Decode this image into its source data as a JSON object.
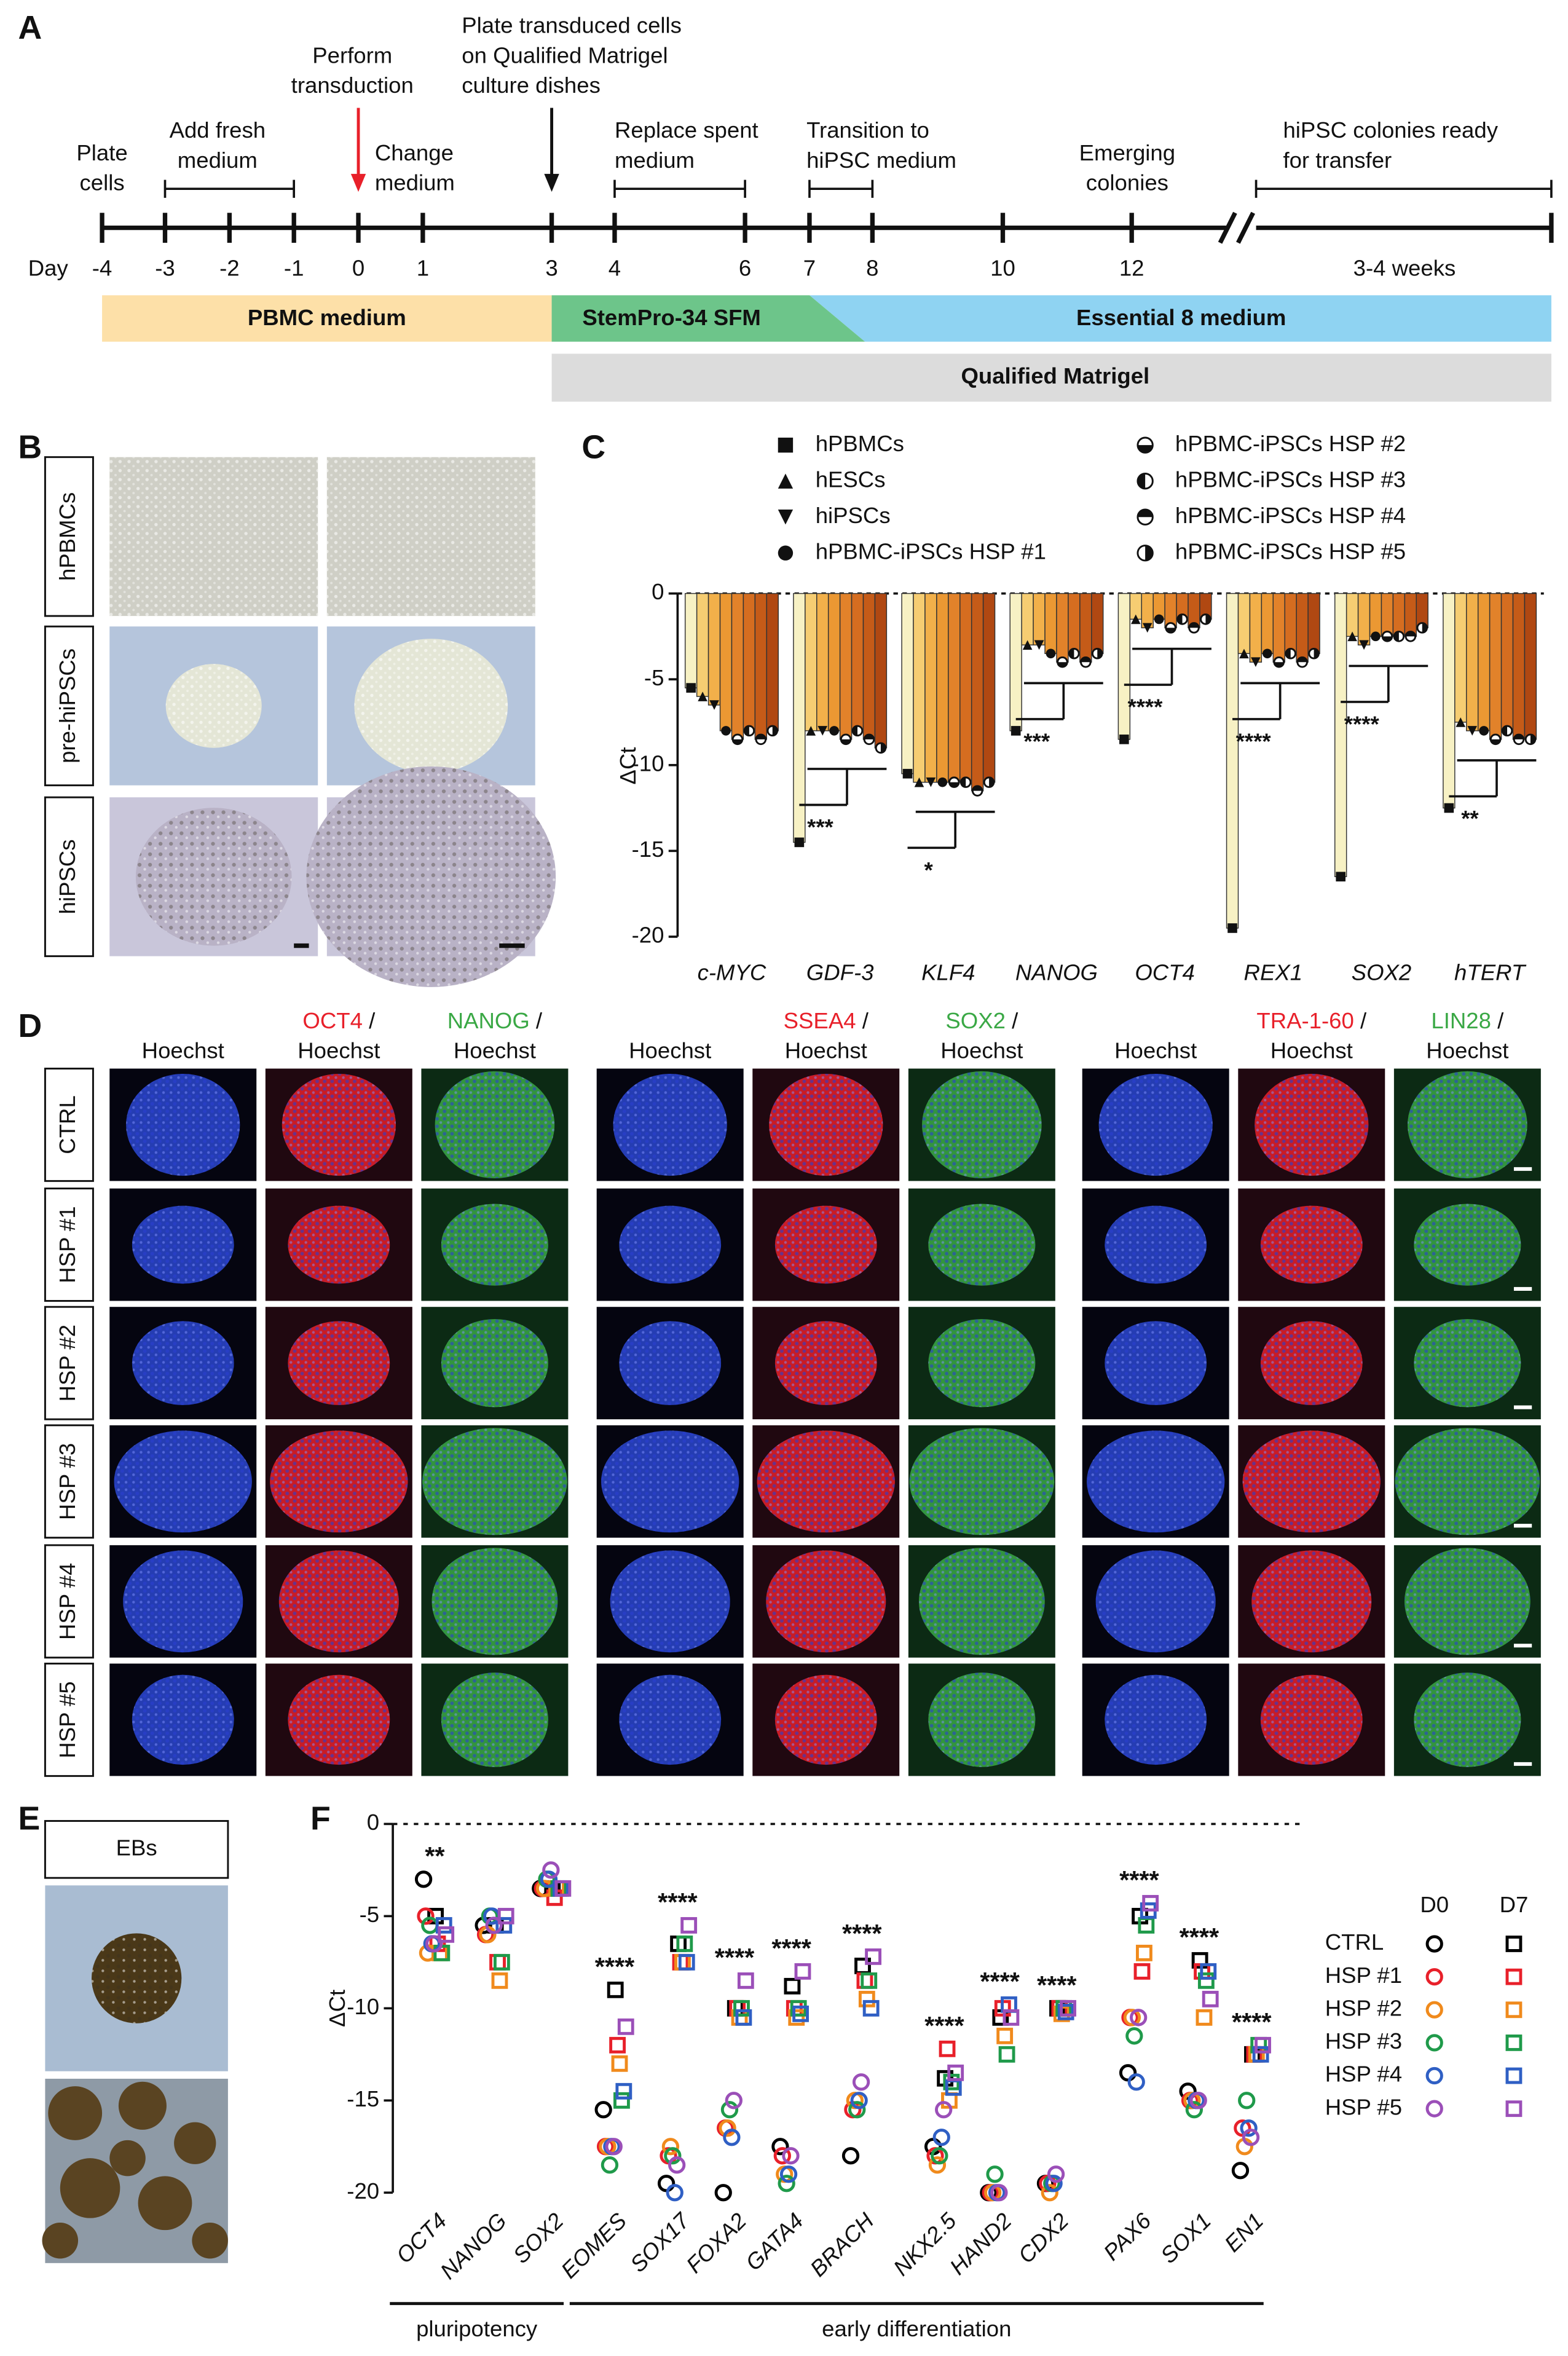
{
  "panel_labels": [
    "A",
    "B",
    "C",
    "D",
    "E",
    "F"
  ],
  "timeline": {
    "day_label": "Day",
    "days": [
      -4,
      -3,
      -2,
      -1,
      0,
      1,
      3,
      4,
      6,
      7,
      8,
      10,
      12
    ],
    "final_label": "3-4 weeks",
    "events": [
      {
        "lines": [
          "Plate",
          "cells"
        ]
      },
      {
        "lines": [
          "Add fresh",
          "medium"
        ]
      },
      {
        "lines": [
          "Perform",
          "transduction"
        ]
      },
      {
        "lines": [
          "Change",
          "medium"
        ]
      },
      {
        "lines": [
          "Plate transduced cells",
          "on Qualified Matrigel",
          "culture dishes"
        ]
      },
      {
        "lines": [
          "Replace spent",
          "medium"
        ]
      },
      {
        "lines": [
          "Transition to",
          "hiPSC medium"
        ]
      },
      {
        "lines": [
          "Emerging",
          "colonies"
        ]
      },
      {
        "lines": [
          "hiPSC colonies ready",
          "for transfer"
        ]
      }
    ],
    "media": [
      "PBMC medium",
      "StemPro-34 SFM",
      "Essential 8 medium"
    ],
    "coating": "Qualified Matrigel"
  },
  "panel_b": {
    "rows": [
      "hPBMCs",
      "pre-hiPSCs",
      "hiPSCs"
    ]
  },
  "chart_data": [
    {
      "type": "bar",
      "y_label": "ΔCt",
      "categories": [
        "c-MYC",
        "GDF-3",
        "KLF4",
        "NANOG",
        "OCT4",
        "REX1",
        "SOX2",
        "hTERT"
      ],
      "ylim": [
        -20,
        0
      ],
      "yticks": [
        -20,
        -15,
        -10,
        -5,
        0
      ],
      "series": [
        {
          "name": "hPBMCs",
          "color": "#f7f1c4",
          "marker": "square",
          "values": [
            -5.5,
            -14.5,
            -10.5,
            -8,
            -8.5,
            -19.5,
            -16.5,
            -12.5
          ]
        },
        {
          "name": "hESCs",
          "color": "#f6cd72",
          "marker": "triangle",
          "values": [
            -6,
            -8,
            -11,
            -3,
            -1.5,
            -3.5,
            -2.5,
            -7.5
          ]
        },
        {
          "name": "hiPSCs",
          "color": "#f2b04a",
          "marker": "triangle-down",
          "values": [
            -6.5,
            -8,
            -11,
            -3,
            -2,
            -4,
            -3,
            -8
          ]
        },
        {
          "name": "hPBMC-iPSCs HSP #1",
          "color": "#eb9833",
          "marker": "circle",
          "values": [
            -8,
            -8,
            -11,
            -3.5,
            -1.5,
            -3.5,
            -2.5,
            -8
          ]
        },
        {
          "name": "hPBMC-iPSCs HSP #2",
          "color": "#e2822a",
          "marker": "half-bottom",
          "values": [
            -8.5,
            -8.5,
            -11,
            -4,
            -2,
            -4,
            -2.5,
            -8.5
          ]
        },
        {
          "name": "hPBMC-iPSCs HSP #3",
          "color": "#d56d20",
          "marker": "half-left",
          "values": [
            -8,
            -8,
            -11,
            -3.5,
            -1.5,
            -3.5,
            -2.5,
            -8
          ]
        },
        {
          "name": "hPBMC-iPSCs HSP #4",
          "color": "#c55b18",
          "marker": "half-top",
          "values": [
            -8.5,
            -8.5,
            -11.5,
            -4,
            -2,
            -4,
            -2.5,
            -8.5
          ]
        },
        {
          "name": "hPBMC-iPSCs HSP #5",
          "color": "#b04812",
          "marker": "half-right",
          "values": [
            -8,
            -9,
            -11,
            -3.5,
            -1.5,
            -3.5,
            -2,
            -8.5
          ]
        }
      ],
      "significance": [
        null,
        "***",
        "*",
        "***",
        "****",
        "****",
        "****",
        "**"
      ]
    },
    {
      "type": "scatter",
      "y_label": "ΔCt",
      "categories": [
        "OCT4",
        "NANOG",
        "SOX2",
        "EOMES",
        "SOX17",
        "FOXA2",
        "GATA4",
        "BRACH",
        "NKX2.5",
        "HAND2",
        "CDX2",
        "PAX6",
        "SOX1",
        "EN1"
      ],
      "ylim": [
        -20,
        0
      ],
      "yticks": [
        -20,
        -15,
        -10,
        -5,
        0
      ],
      "timepoints": [
        "D0",
        "D7"
      ],
      "markers": [
        "circle",
        "square"
      ],
      "series": [
        {
          "name": "CTRL",
          "color": "#000000",
          "values": [
            [
              -3,
              -5.5,
              -3.5,
              -15.5,
              -19.5,
              -20,
              -17.5,
              -18,
              -17.5,
              -20,
              -19.5,
              -13.5,
              -14.5,
              -18.8
            ],
            [
              -5,
              -5.5,
              -3.5,
              -9,
              -6.5,
              -10,
              -8.8,
              -7.7,
              -13.8,
              -10.5,
              -10,
              -5,
              -7.4,
              -12.5
            ]
          ]
        },
        {
          "name": "HSP #1",
          "color": "#e8202a",
          "values": [
            [
              -5,
              -6,
              -3.5,
              -17.5,
              -18,
              -16.5,
              -18,
              -15.5,
              -18,
              -20,
              -19.5,
              -10.5,
              -15,
              -16.5
            ],
            [
              -6.5,
              -7.5,
              -4,
              -12,
              -7.5,
              -10,
              -10,
              -8.5,
              -12.2,
              -10,
              -10,
              -8,
              -8,
              -12.5
            ]
          ]
        },
        {
          "name": "HSP #2",
          "color": "#f08a1c",
          "values": [
            [
              -7,
              -6,
              -3.5,
              -17.5,
              -17.5,
              -16.5,
              -19,
              -15,
              -18.5,
              -20,
              -20,
              -10.5,
              -15,
              -17.5
            ],
            [
              -7,
              -8.5,
              -3.5,
              -13,
              -7.5,
              -10.5,
              -10.5,
              -9.5,
              -15,
              -11.5,
              -10.3,
              -7,
              -10.5,
              -12.5
            ]
          ]
        },
        {
          "name": "HSP #3",
          "color": "#1f9a4a",
          "values": [
            [
              -5.5,
              -5,
              -3,
              -18.5,
              -18,
              -15.5,
              -19.5,
              -15.5,
              -18,
              -19,
              -19.5,
              -11.5,
              -15.5,
              -15
            ],
            [
              -7,
              -7.5,
              -3.5,
              -15,
              -6.5,
              -10,
              -10,
              -8.5,
              -14,
              -12.5,
              -10,
              -5.5,
              -8.5,
              -12
            ]
          ]
        },
        {
          "name": "HSP #4",
          "color": "#2f5fc4",
          "values": [
            [
              -6.5,
              -5,
              -3,
              -17.5,
              -20,
              -17,
              -19,
              -15,
              -17,
              -20,
              -19.5,
              -14,
              -15,
              -16.5
            ],
            [
              -5.5,
              -5.5,
              -3.5,
              -14.5,
              -7.5,
              -10.5,
              -10.3,
              -10,
              -14.3,
              -9.8,
              -10.2,
              -4.7,
              -8,
              -12.5
            ]
          ]
        },
        {
          "name": "HSP #5",
          "color": "#9b4fb8",
          "values": [
            [
              -6.5,
              -5.5,
              -2.5,
              -17.5,
              -18.5,
              -15,
              -18,
              -14,
              -15.5,
              -20,
              -19,
              -10.5,
              -15,
              -17
            ],
            [
              -6,
              -5,
              -3.5,
              -11,
              -5.5,
              -8.5,
              -8,
              -7.2,
              -13.5,
              -10.5,
              -10,
              -4.3,
              -9.5,
              -12
            ]
          ]
        }
      ],
      "significance": [
        "**",
        null,
        null,
        "****",
        "****",
        "****",
        "****",
        "****",
        "****",
        "****",
        "****",
        "****",
        "****",
        "****"
      ],
      "groups": [
        {
          "label": "pluripotency",
          "size": 3
        },
        {
          "label": "early differentiation",
          "size": 11
        }
      ]
    }
  ],
  "panel_d": {
    "columns": [
      {
        "counterstain": "Hoechst",
        "counterstain_color": "#3a4fc0"
      },
      {
        "stain": "OCT4",
        "stain_color": "#e8202a",
        "separator": " /",
        "counterstain": "Hoechst",
        "counterstain_color": "#3a4fc0"
      },
      {
        "stain": "NANOG",
        "stain_color": "#3aa845",
        "separator": " /",
        "counterstain": "Hoechst",
        "counterstain_color": "#3a4fc0"
      },
      {
        "counterstain": "Hoechst",
        "counterstain_color": "#3a4fc0"
      },
      {
        "stain": "SSEA4",
        "stain_color": "#e8202a",
        "separator": " /",
        "counterstain": "Hoechst",
        "counterstain_color": "#3a4fc0"
      },
      {
        "stain": "SOX2",
        "stain_color": "#3aa845",
        "separator": " /",
        "counterstain": "Hoechst",
        "counterstain_color": "#3a4fc0"
      },
      {
        "counterstain": "Hoechst",
        "counterstain_color": "#3a4fc0"
      },
      {
        "stain": "TRA-1-60",
        "stain_color": "#e8202a",
        "separator": " /",
        "counterstain": "Hoechst",
        "counterstain_color": "#3a4fc0"
      },
      {
        "stain": "LIN28",
        "stain_color": "#3aa845",
        "separator": " /",
        "counterstain": "Hoechst",
        "counterstain_color": "#3a4fc0"
      }
    ],
    "rows": [
      "CTRL",
      "HSP #1",
      "HSP #2",
      "HSP #3",
      "HSP #4",
      "HSP #5"
    ]
  },
  "panel_e": {
    "label": "EBs"
  }
}
